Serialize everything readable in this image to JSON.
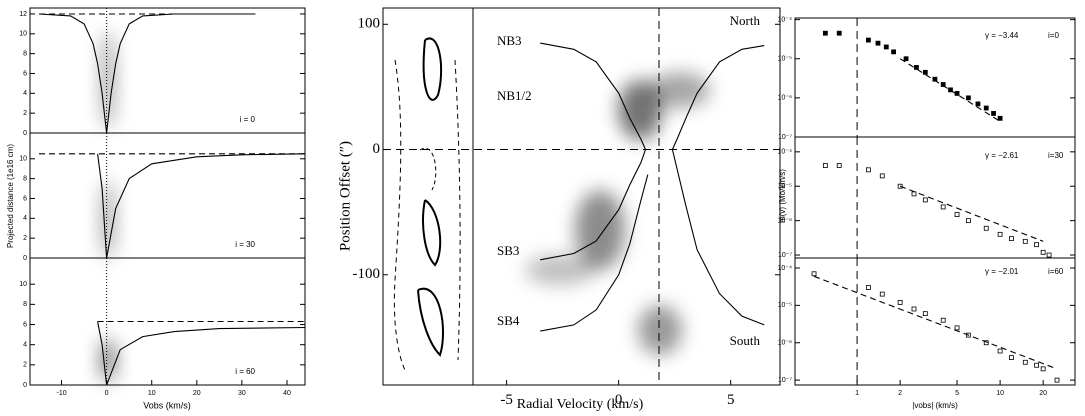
{
  "chart_data": [
    {
      "type": "line",
      "ylabel": "Projected distance (1e16 cm)",
      "annotations": [
        "i = 0"
      ],
      "xlim": [
        -17,
        44
      ],
      "ylim": [
        0,
        12.6
      ],
      "yticks": [
        0,
        2,
        4,
        6,
        8,
        10,
        12
      ],
      "vlines": [
        0
      ],
      "refline": "dotted",
      "series": [
        {
          "color": "#000000",
          "dash": true,
          "x": [
            -15,
            33
          ],
          "values": [
            12,
            12
          ]
        },
        {
          "color": "#000000",
          "dash": false,
          "x": [
            -15,
            -8,
            -5,
            -3,
            -2,
            -1,
            0,
            1,
            2,
            3,
            5,
            8,
            15,
            33
          ],
          "values": [
            12,
            11.8,
            11,
            9,
            7,
            4,
            0,
            4,
            7,
            9,
            11,
            11.8,
            12,
            12
          ]
        }
      ]
    },
    {
      "type": "line",
      "annotations": [
        "i = 30"
      ],
      "xlim": [
        -17,
        44
      ],
      "ylim": [
        0,
        12.6
      ],
      "yticks": [
        0,
        2,
        4,
        6,
        8,
        10
      ],
      "vlines": [
        0
      ],
      "refline": "dotted",
      "series": [
        {
          "color": "#000000",
          "dash": true,
          "x": [
            -15,
            44
          ],
          "values": [
            10.5,
            10.5
          ]
        },
        {
          "color": "#000000",
          "dash": false,
          "x": [
            -2,
            -1,
            0,
            2,
            5,
            10,
            20,
            30,
            44
          ],
          "values": [
            10.5,
            7,
            0,
            5,
            8,
            9.5,
            10.2,
            10.4,
            10.5
          ]
        }
      ]
    },
    {
      "type": "line",
      "xlabel": "Vobs (km/s)",
      "annotations": [
        "i = 60"
      ],
      "xlim": [
        -17,
        44
      ],
      "xticks": [
        -10,
        0,
        10,
        20,
        30,
        40
      ],
      "ylim": [
        0,
        12.6
      ],
      "yticks": [
        0,
        2,
        4,
        6,
        8,
        10
      ],
      "vlines": [
        0
      ],
      "refline": "dotted",
      "series": [
        {
          "color": "#000000",
          "dash": true,
          "x": [
            -2,
            44
          ],
          "values": [
            6.3,
            6.3
          ]
        },
        {
          "color": "#000000",
          "dash": false,
          "x": [
            -2,
            -1,
            0,
            3,
            8,
            15,
            25,
            44
          ],
          "values": [
            6.3,
            4,
            0,
            3.5,
            4.8,
            5.3,
            5.6,
            5.7
          ]
        }
      ]
    },
    {
      "type": "line",
      "xlabel": "Radial Velocity (km/s)",
      "ylabel": "Position Offset (″)",
      "annotations": [
        "NB3",
        "NB1/2",
        "SB3",
        "SB4",
        "North",
        "South"
      ],
      "xlim": [
        -6.5,
        7.2
      ],
      "xticks": [
        -5,
        0,
        5
      ],
      "ylim": [
        -188,
        113
      ],
      "yticks": [
        -100,
        0,
        100
      ],
      "vlines": [
        1.8
      ],
      "hlines": [
        0
      ],
      "refline": "dashed",
      "series": [
        {
          "color": "#000000",
          "dash": false,
          "x": [
            -3.5,
            -2,
            -1,
            0,
            0.5,
            1,
            1.2
          ],
          "values": [
            85,
            80,
            70,
            45,
            25,
            8,
            0
          ]
        },
        {
          "color": "#000000",
          "dash": false,
          "x": [
            2.4,
            2.6,
            3,
            3.5,
            4.5,
            5.5,
            6.5
          ],
          "values": [
            0,
            8,
            25,
            45,
            70,
            80,
            83
          ]
        },
        {
          "color": "#000000",
          "dash": false,
          "x": [
            -3.5,
            -2,
            -1,
            0,
            0.5,
            1,
            1.2
          ],
          "values": [
            -88,
            -83,
            -73,
            -48,
            -28,
            -10,
            0
          ]
        },
        {
          "color": "#000000",
          "dash": false,
          "x": [
            2.4,
            2.6,
            3,
            3.5,
            4.5,
            5.5,
            6.5
          ],
          "values": [
            0,
            -15,
            -45,
            -80,
            -115,
            -133,
            -140
          ]
        },
        {
          "color": "#000000",
          "dash": false,
          "x": [
            -3.5,
            -2,
            -1,
            0,
            0.5,
            1,
            1.3
          ],
          "values": [
            -145,
            -140,
            -128,
            -100,
            -75,
            -40,
            -20
          ]
        }
      ]
    },
    {
      "type": "scatter",
      "annotations": [
        "γ = −3.44",
        "i=0"
      ],
      "xlog": true,
      "ylog": true,
      "xlim": [
        0.368,
        33.4
      ],
      "ylim": [
        1e-07,
        0.00011
      ],
      "yticks": [
        {
          "value": 1e-07,
          "label": "10⁻⁷"
        },
        {
          "value": 1e-06,
          "label": "10⁻⁶"
        },
        {
          "value": 1e-05,
          "label": "10⁻⁵"
        },
        {
          "value": 0.0001,
          "label": "10⁻⁴"
        }
      ],
      "vlines": [
        1
      ],
      "refline": "dashed",
      "series": [
        {
          "color": "#000000",
          "marker": "filled",
          "x": [
            0.6,
            0.75,
            1.2,
            1.4,
            1.6,
            1.8,
            2.2,
            2.6,
            3,
            3.5,
            4,
            4.5,
            5,
            6,
            7,
            8,
            9,
            10
          ],
          "values": [
            4.5e-05,
            4.5e-05,
            3e-05,
            2.5e-05,
            2e-05,
            1.5e-05,
            1e-05,
            6e-06,
            4.5e-06,
            3e-06,
            2.2e-06,
            1.6e-06,
            1.3e-06,
            1e-06,
            7e-07,
            5.5e-07,
            4e-07,
            3e-07
          ]
        },
        {
          "color": "#000000",
          "marker": "line",
          "x": [
            2,
            10
          ],
          "values": [
            1e-05,
            2.5e-07
          ]
        }
      ]
    },
    {
      "type": "scatter",
      "ylabel": "m(v) (Mo/km/s)",
      "annotations": [
        "γ = −2.61",
        "i=30"
      ],
      "xlog": true,
      "ylog": true,
      "xlim": [
        0.368,
        33.4
      ],
      "ylim": [
        8.2e-08,
        0.00027
      ],
      "yticks": [
        {
          "value": 1e-07,
          "label": "10⁻⁷"
        },
        {
          "value": 1e-06,
          "label": "10⁻⁶"
        },
        {
          "value": 1e-05,
          "label": "10⁻⁵"
        },
        {
          "value": 0.0001,
          "label": "10⁻⁴"
        }
      ],
      "vlines": [
        1
      ],
      "refline": "dashed",
      "series": [
        {
          "color": "#000000",
          "marker": "open",
          "x": [
            0.6,
            0.75,
            1.2,
            1.5,
            2,
            2.5,
            3,
            4,
            5,
            6,
            8,
            10,
            12,
            15,
            18,
            20,
            22
          ],
          "values": [
            4e-05,
            4e-05,
            3e-05,
            2e-05,
            1e-05,
            6e-06,
            4e-06,
            2.5e-06,
            1.5e-06,
            1e-06,
            6e-07,
            4e-07,
            3e-07,
            2.5e-07,
            2e-07,
            1.2e-07,
            1e-07
          ]
        },
        {
          "color": "#000000",
          "marker": "line",
          "x": [
            2,
            20
          ],
          "values": [
            1e-05,
            2.5e-07
          ]
        }
      ]
    },
    {
      "type": "scatter",
      "xlabel": "|vobs| (km/s)",
      "annotations": [
        "γ = −2.01",
        "i=60"
      ],
      "xlog": true,
      "ylog": true,
      "xlim": [
        0.368,
        33.4
      ],
      "xticks": [
        1,
        2,
        5,
        10,
        20
      ],
      "ylim": [
        7.4e-08,
        0.000185
      ],
      "yticks": [
        {
          "value": 1e-07,
          "label": "10⁻⁷"
        },
        {
          "value": 1e-06,
          "label": "10⁻⁶"
        },
        {
          "value": 1e-05,
          "label": "10⁻⁵"
        },
        {
          "value": 0.0001,
          "label": "10⁻⁴"
        }
      ],
      "vlines": [
        1
      ],
      "refline": "dashed",
      "series": [
        {
          "color": "#000000",
          "marker": "open",
          "x": [
            0.5,
            1.2,
            1.5,
            2,
            2.5,
            3,
            4,
            5,
            6,
            8,
            10,
            12,
            15,
            18,
            20,
            25
          ],
          "values": [
            7e-05,
            3e-05,
            2e-05,
            1.2e-05,
            8e-06,
            6e-06,
            4e-06,
            2.5e-06,
            1.6e-06,
            1e-06,
            6e-07,
            4e-07,
            3e-07,
            2.5e-07,
            2e-07,
            1e-07
          ]
        },
        {
          "color": "#000000",
          "marker": "line",
          "x": [
            0.5,
            25
          ],
          "values": [
            6e-05,
            2e-07
          ]
        }
      ]
    }
  ]
}
